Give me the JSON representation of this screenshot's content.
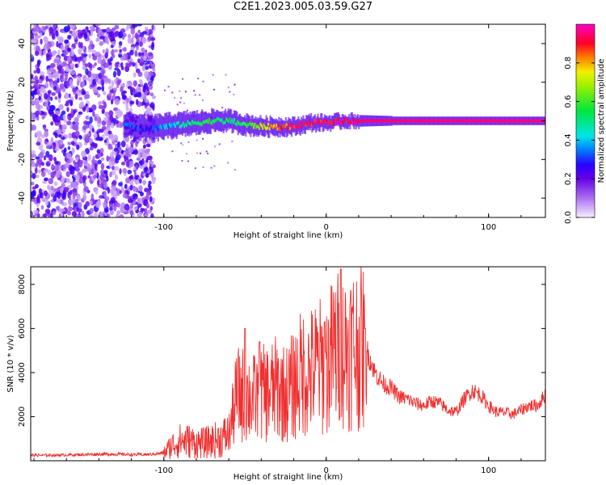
{
  "figure": {
    "title": "C2E1.2023.005.03.59.G27"
  },
  "chart_data": [
    {
      "type": "heatmap",
      "xlabel": "Height of straight line (km)",
      "ylabel": "Frequency (Hz)",
      "xlim": [
        -182,
        135
      ],
      "ylim": [
        -50,
        50
      ],
      "xticks": [
        -100,
        0,
        100
      ],
      "yticks": [
        -40,
        -20,
        0,
        20,
        40
      ],
      "colorbar": {
        "label": "Normalized spectral amplitude",
        "ticks": [
          0.0,
          0.2,
          0.4,
          0.6,
          0.8
        ],
        "range": [
          0,
          1
        ]
      },
      "ridge": {
        "x": [
          -125,
          -110,
          -100,
          -90,
          -80,
          -70,
          -60,
          -50,
          -40,
          -30,
          -20,
          -10,
          0,
          10,
          20,
          30,
          40,
          60,
          80,
          100,
          120,
          135
        ],
        "frequency": [
          -2,
          -4,
          -3,
          -2,
          -1,
          0,
          0,
          -2,
          -3,
          -3,
          -3,
          -1,
          -1,
          0,
          0,
          0,
          0,
          0,
          0,
          0,
          0,
          0
        ],
        "amplitude": [
          0.3,
          0.25,
          0.35,
          0.45,
          0.5,
          0.55,
          0.5,
          0.55,
          0.7,
          0.85,
          0.9,
          0.9,
          0.95,
          0.95,
          0.95,
          0.95,
          0.95,
          0.95,
          0.95,
          0.95,
          0.95,
          0.95
        ]
      },
      "noise_region_x": [
        -182,
        -100
      ]
    },
    {
      "type": "line",
      "xlabel": "Height of straight line (km)",
      "ylabel": "SNR (10 * v/v)",
      "xlim": [
        -182,
        135
      ],
      "ylim": [
        0,
        8800
      ],
      "xticks": [
        -100,
        0,
        100
      ],
      "yticks": [
        2000,
        4000,
        6000,
        8000
      ],
      "series": [
        {
          "color": "#f03030",
          "x": [
            -182,
            -170,
            -160,
            -150,
            -140,
            -130,
            -120,
            -110,
            -100,
            -95,
            -90,
            -85,
            -80,
            -75,
            -70,
            -65,
            -60,
            -55,
            -50,
            -45,
            -40,
            -35,
            -30,
            -25,
            -20,
            -15,
            -10,
            -5,
            0,
            5,
            10,
            15,
            20,
            25,
            30,
            35,
            40,
            45,
            50,
            55,
            60,
            65,
            70,
            75,
            80,
            85,
            90,
            95,
            100,
            105,
            110,
            115,
            120,
            125,
            130,
            135
          ],
          "y": [
            250,
            250,
            260,
            280,
            300,
            300,
            280,
            280,
            350,
            700,
            900,
            900,
            800,
            800,
            900,
            1000,
            1200,
            3000,
            3000,
            2800,
            3000,
            3100,
            3300,
            3000,
            3400,
            4000,
            4000,
            4300,
            4200,
            5000,
            5000,
            5200,
            5200,
            5000,
            4000,
            3500,
            3300,
            2900,
            2800,
            2600,
            2500,
            2700,
            2600,
            2300,
            2200,
            2800,
            3200,
            3000,
            2500,
            2200,
            2200,
            2100,
            2300,
            2500,
            2500,
            3000
          ]
        }
      ],
      "spikes": [
        {
          "x": 9,
          "y": 8700
        },
        {
          "x": -50,
          "y": 6000
        },
        {
          "x": -41,
          "y": 5400
        },
        {
          "x": -1,
          "y": 6300
        },
        {
          "x": 24,
          "y": 6000
        }
      ]
    }
  ]
}
